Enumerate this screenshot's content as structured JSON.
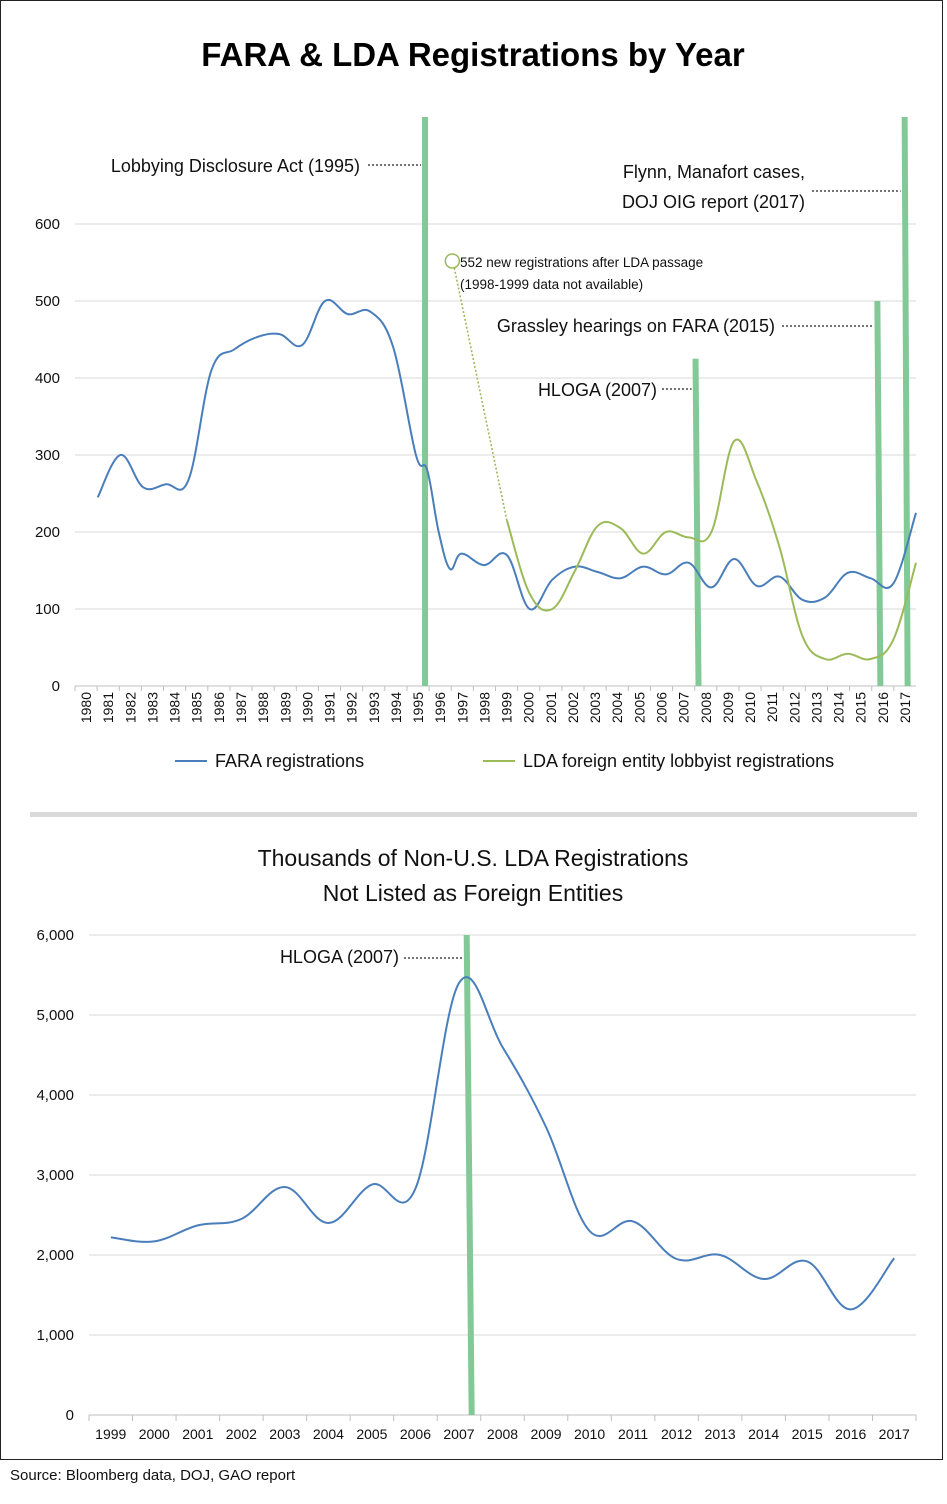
{
  "source": "Source: Bloomberg data, DOJ, GAO report",
  "chart_data": [
    {
      "type": "line",
      "title": "FARA & LDA Registrations by Year",
      "xlabel": "",
      "ylabel": "",
      "ylim": [
        0,
        600
      ],
      "yticks": [
        "0",
        "100",
        "200",
        "300",
        "400",
        "500",
        "600"
      ],
      "x": [
        "1980",
        "1981",
        "1982",
        "1983",
        "1984",
        "1985",
        "1986",
        "1987",
        "1988",
        "1989",
        "1990",
        "1991",
        "1992",
        "1993",
        "1994",
        "1995",
        "1996",
        "1997",
        "1998",
        "1999",
        "2000",
        "2001",
        "2002",
        "2003",
        "2004",
        "2005",
        "2006",
        "2007",
        "2008",
        "2009",
        "2010",
        "2011",
        "2012",
        "2013",
        "2014",
        "2015",
        "2016",
        "2017"
      ],
      "grid": true,
      "legend_position": "bottom",
      "series": [
        {
          "name": "FARA registrations",
          "color": "#4a7ebb",
          "points": [
            [
              1981,
              245
            ],
            [
              1982,
              300
            ],
            [
              1983,
              258
            ],
            [
              1984,
              262
            ],
            [
              1985,
              268
            ],
            [
              1986,
              410
            ],
            [
              1987,
              437
            ],
            [
              1988,
              453
            ],
            [
              1989,
              457
            ],
            [
              1990,
              443
            ],
            [
              1991,
              500
            ],
            [
              1992,
              483
            ],
            [
              1993,
              486
            ],
            [
              1994,
              440
            ],
            [
              1995,
              300
            ],
            [
              1995.5,
              280
            ],
            [
              1996,
              200
            ],
            [
              1996.5,
              152
            ],
            [
              1997,
              172
            ],
            [
              1998,
              157
            ],
            [
              1999,
              170
            ],
            [
              2000,
              100
            ],
            [
              2001,
              138
            ],
            [
              2002,
              155
            ],
            [
              2003,
              148
            ],
            [
              2004,
              140
            ],
            [
              2005,
              155
            ],
            [
              2006,
              145
            ],
            [
              2007,
              160
            ],
            [
              2008,
              128
            ],
            [
              2009,
              165
            ],
            [
              2010,
              130
            ],
            [
              2011,
              142
            ],
            [
              2012,
              112
            ],
            [
              2013,
              115
            ],
            [
              2014,
              147
            ],
            [
              2015,
              140
            ],
            [
              2016,
              133
            ],
            [
              2017,
              225
            ]
          ]
        },
        {
          "name": "LDA foreign entity lobbyist registrations",
          "color": "#9bbb59",
          "points": [
            [
              1999,
              215
            ],
            [
              2000,
              120
            ],
            [
              2001,
              100
            ],
            [
              2002,
              150
            ],
            [
              2003,
              208
            ],
            [
              2004,
              205
            ],
            [
              2005,
              172
            ],
            [
              2006,
              200
            ],
            [
              2007,
              193
            ],
            [
              2008,
              200
            ],
            [
              2009,
              318
            ],
            [
              2010,
              265
            ],
            [
              2011,
              180
            ],
            [
              2012,
              65
            ],
            [
              2013,
              35
            ],
            [
              2014,
              42
            ],
            [
              2015,
              35
            ],
            [
              2016,
              60
            ],
            [
              2017,
              160
            ]
          ]
        }
      ],
      "events": [
        {
          "label": "Lobbying Disclosure Act (1995)",
          "x": 1995.4,
          "top": 740
        },
        {
          "label": "HLOGA (2007)",
          "x": 2007.3,
          "top": 425
        },
        {
          "label": "Grassley hearings on FARA (2015)",
          "x": 2015.3,
          "top": 500
        },
        {
          "label": "Flynn, Manafort cases,",
          "label2": "DOJ OIG report (2017)",
          "x": 2016.5,
          "top": 740
        }
      ],
      "annotation": {
        "line1": "552 new registrations after LDA passage",
        "line2": "(1998-1999 data not available)",
        "marker_value": 552,
        "marker_x": 1996.6
      },
      "line_color": "#82c997"
    },
    {
      "type": "line",
      "title": "Thousands of Non-U.S. LDA Registrations",
      "subtitle": "Not Listed as Foreign Entities",
      "xlabel": "",
      "ylabel": "",
      "ylim": [
        0,
        6000
      ],
      "yticks": [
        "0",
        "1,000",
        "2,000",
        "3,000",
        "4,000",
        "5,000",
        "6,000"
      ],
      "x": [
        "1999",
        "2000",
        "2001",
        "2002",
        "2003",
        "2004",
        "2005",
        "2006",
        "2007",
        "2008",
        "2009",
        "2010",
        "2011",
        "2012",
        "2013",
        "2014",
        "2015",
        "2016",
        "2017"
      ],
      "grid": true,
      "series": [
        {
          "color": "#4a7ebb",
          "points": [
            [
              1999,
              2220
            ],
            [
              2000,
              2170
            ],
            [
              2001,
              2370
            ],
            [
              2002,
              2450
            ],
            [
              2003,
              2850
            ],
            [
              2004,
              2400
            ],
            [
              2005,
              2880
            ],
            [
              2006,
              2830
            ],
            [
              2007,
              5400
            ],
            [
              2008,
              4600
            ],
            [
              2009,
              3600
            ],
            [
              2010,
              2300
            ],
            [
              2011,
              2420
            ],
            [
              2012,
              1950
            ],
            [
              2013,
              2000
            ],
            [
              2014,
              1700
            ],
            [
              2015,
              1920
            ],
            [
              2016,
              1320
            ],
            [
              2017,
              1960
            ]
          ]
        }
      ],
      "events": [
        {
          "label": "HLOGA (2007)",
          "x": 2007.2
        }
      ],
      "line_color": "#82c997"
    }
  ]
}
